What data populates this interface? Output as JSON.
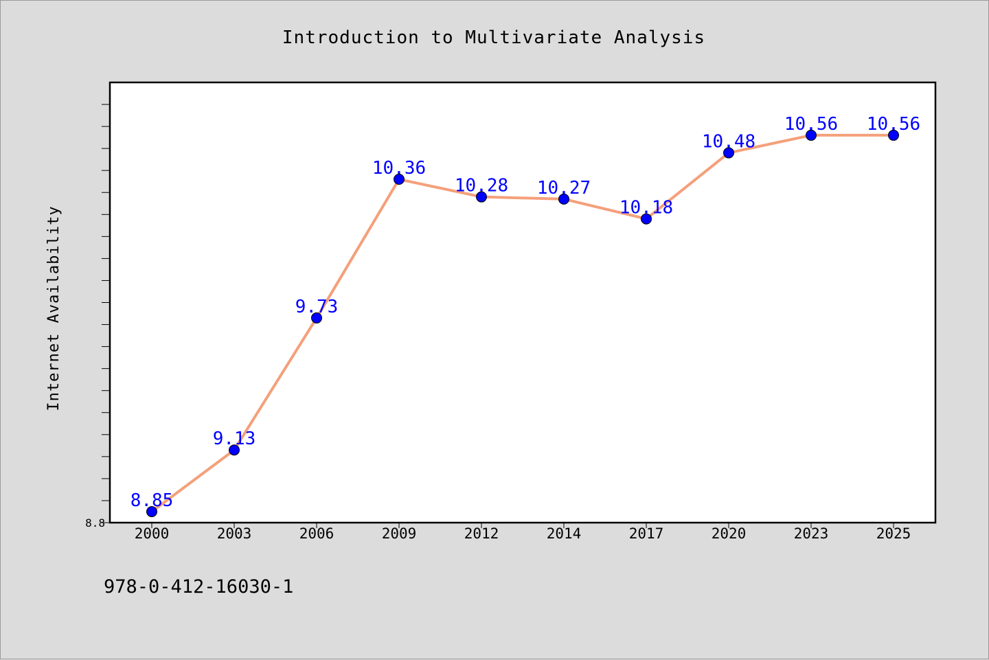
{
  "chart_data": {
    "type": "line",
    "title": "Introduction to Multivariate Analysis",
    "xlabel": "",
    "ylabel": "Internet Availability",
    "categories": [
      "2000",
      "2003",
      "2006",
      "2009",
      "2012",
      "2014",
      "2017",
      "2020",
      "2023",
      "2025"
    ],
    "series": [
      {
        "values": [
          8.85,
          9.13,
          9.73,
          10.36,
          10.28,
          10.27,
          10.18,
          10.48,
          10.56,
          10.56
        ],
        "data_labels": [
          "8.85",
          "9.13",
          "9.73",
          "10.36",
          "10.28",
          "10.27",
          "10.18",
          "10.48",
          "10.56",
          "10.56"
        ]
      }
    ],
    "ylim": [
      8.8,
      10.8
    ],
    "y_tick_labels": [
      "8.8"
    ],
    "grid": false,
    "line_color": "#f4a07a",
    "marker_color": "#0000ff",
    "label_color": "#0000ff"
  },
  "footer": {
    "isbn": "978-0-412-16030-1"
  }
}
